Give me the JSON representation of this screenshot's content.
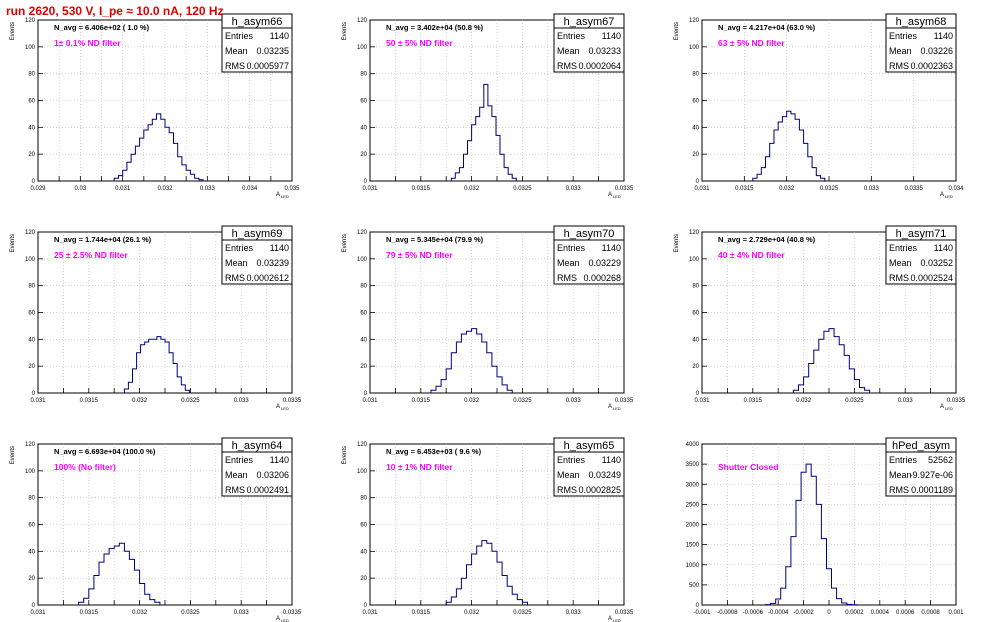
{
  "page": {
    "title": "run 2620,   530 V, I_pe ≈ 10.0 nA, 120 Hz"
  },
  "colors": {
    "histogram_line": "#000080",
    "annotation": "#ff00ff",
    "title": "#e00000",
    "grid": "#b8b8b8"
  },
  "chart_data": [
    {
      "type": "histogram",
      "name": "h_asym66",
      "stats": {
        "entries_label": "Entries",
        "entries": "1140",
        "mean_label": "Mean",
        "mean": "0.03235",
        "rms_label": "RMS",
        "rms": "0.0005977"
      },
      "navg": "N_avg = 6.406e+02 ( 1.0 %)",
      "filter": "1± 0.1% ND filter",
      "ylabel": "Events",
      "xlabel": "A",
      "xlabel_sub": "LED",
      "xlim": [
        0.029,
        0.035
      ],
      "ylim": [
        0,
        120
      ],
      "xticks": [
        0.029,
        0.0295,
        0.03,
        0.0305,
        0.031,
        0.0315,
        0.032,
        0.0325,
        0.033,
        0.0335,
        0.034,
        0.0345,
        0.035
      ],
      "xtick_labels": [
        "0.029",
        "",
        "0.03",
        "",
        "0.031",
        "",
        "0.032",
        "",
        "0.033",
        "",
        "0.034",
        "",
        "0.035"
      ],
      "yticks": [
        0,
        20,
        40,
        60,
        80,
        100,
        120
      ],
      "ytick_labels": [
        "0",
        "20",
        "40",
        "60",
        "80",
        "100",
        "120"
      ],
      "bin_start": 0.0308,
      "bin_width": 0.0001,
      "counts": [
        2,
        4,
        8,
        14,
        20,
        26,
        32,
        38,
        42,
        46,
        50,
        46,
        40,
        36,
        28,
        18,
        12,
        8,
        5,
        2,
        1
      ]
    },
    {
      "type": "histogram",
      "name": "h_asym67",
      "stats": {
        "entries_label": "Entries",
        "entries": "1140",
        "mean_label": "Mean",
        "mean": "0.03233",
        "rms_label": "RMS",
        "rms": "0.0002064"
      },
      "navg": "N_avg = 3.402e+04 (50.8 %)",
      "filter": "50 ± 5% ND filter",
      "ylabel": "Events",
      "xlabel": "A",
      "xlabel_sub": "LED",
      "xlim": [
        0.031,
        0.0335
      ],
      "ylim": [
        0,
        120
      ],
      "xticks": [
        0.031,
        0.03125,
        0.0315,
        0.03175,
        0.032,
        0.03225,
        0.0325,
        0.03275,
        0.033,
        0.03325,
        0.0335
      ],
      "xtick_labels": [
        "0.031",
        "",
        "0.0315",
        "",
        "0.032",
        "",
        "0.0325",
        "",
        "0.033",
        "",
        "0.0335"
      ],
      "yticks": [
        0,
        20,
        40,
        60,
        80,
        100,
        120
      ],
      "ytick_labels": [
        "0",
        "20",
        "40",
        "60",
        "80",
        "100",
        "120"
      ],
      "bin_start": 0.0318,
      "bin_width": 4e-05,
      "counts": [
        2,
        6,
        10,
        20,
        30,
        42,
        48,
        55,
        72,
        56,
        48,
        34,
        20,
        10,
        5,
        2
      ]
    },
    {
      "type": "histogram",
      "name": "h_asym68",
      "stats": {
        "entries_label": "Entries",
        "entries": "1140",
        "mean_label": "Mean",
        "mean": "0.03226",
        "rms_label": "RMS",
        "rms": "0.0002363"
      },
      "navg": "N_avg = 4.217e+04 (63.0 %)",
      "filter": "63 ± 5% ND filter",
      "ylabel": "Events",
      "xlabel": "A",
      "xlabel_sub": "LED",
      "xlim": [
        0.031,
        0.034
      ],
      "ylim": [
        0,
        120
      ],
      "xticks": [
        0.031,
        0.0315,
        0.032,
        0.0325,
        0.033,
        0.0335,
        0.034
      ],
      "xtick_labels": [
        "0.031",
        "0.0315",
        "0.032",
        "0.0325",
        "0.033",
        "0.0335",
        "0.034"
      ],
      "yticks": [
        0,
        20,
        40,
        60,
        80,
        100,
        120
      ],
      "ytick_labels": [
        "0",
        "20",
        "40",
        "60",
        "80",
        "100",
        "120"
      ],
      "bin_start": 0.0316,
      "bin_width": 5e-05,
      "counts": [
        2,
        5,
        10,
        18,
        28,
        38,
        44,
        48,
        52,
        50,
        46,
        38,
        28,
        18,
        10,
        4,
        2
      ]
    },
    {
      "type": "histogram",
      "name": "h_asym69",
      "stats": {
        "entries_label": "Entries",
        "entries": "1140",
        "mean_label": "Mean",
        "mean": "0.03239",
        "rms_label": "RMS",
        "rms": "0.0002612"
      },
      "navg": "N_avg = 1.744e+04 (26.1 %)",
      "filter": "25 ± 2.5% ND filter",
      "ylabel": "Events",
      "xlabel": "A",
      "xlabel_sub": "LED",
      "xlim": [
        0.031,
        0.0335
      ],
      "ylim": [
        0,
        120
      ],
      "xticks": [
        0.031,
        0.03125,
        0.0315,
        0.03175,
        0.032,
        0.03225,
        0.0325,
        0.03275,
        0.033,
        0.03325,
        0.0335
      ],
      "xtick_labels": [
        "0.031",
        "",
        "0.0315",
        "",
        "0.032",
        "",
        "0.0325",
        "",
        "0.033",
        "",
        "0.0335"
      ],
      "yticks": [
        0,
        20,
        40,
        60,
        80,
        100,
        120
      ],
      "ytick_labels": [
        "0",
        "20",
        "40",
        "60",
        "80",
        "100",
        "120"
      ],
      "bin_start": 0.03185,
      "bin_width": 4e-05,
      "counts": [
        3,
        8,
        18,
        30,
        36,
        38,
        40,
        40,
        42,
        40,
        38,
        30,
        22,
        12,
        6,
        2
      ]
    },
    {
      "type": "histogram",
      "name": "h_asym70",
      "stats": {
        "entries_label": "Entries",
        "entries": "1140",
        "mean_label": "Mean",
        "mean": "0.03229",
        "rms_label": "RMS",
        "rms": "0.000268"
      },
      "navg": "N_avg = 5.345e+04 (79.9 %)",
      "filter": "79 ± 5% ND filter",
      "ylabel": "Events",
      "xlabel": "A",
      "xlabel_sub": "LED",
      "xlim": [
        0.031,
        0.0335
      ],
      "ylim": [
        0,
        120
      ],
      "xticks": [
        0.031,
        0.03125,
        0.0315,
        0.03175,
        0.032,
        0.03225,
        0.0325,
        0.03275,
        0.033,
        0.03325,
        0.0335
      ],
      "xtick_labels": [
        "0.031",
        "",
        "0.0315",
        "",
        "0.032",
        "",
        "0.0325",
        "",
        "0.033",
        "",
        "0.0335"
      ],
      "yticks": [
        0,
        20,
        40,
        60,
        80,
        100,
        120
      ],
      "ytick_labels": [
        "0",
        "20",
        "40",
        "60",
        "80",
        "100",
        "120"
      ],
      "bin_start": 0.0316,
      "bin_width": 5e-05,
      "counts": [
        2,
        5,
        10,
        18,
        30,
        38,
        44,
        46,
        48,
        44,
        38,
        30,
        20,
        12,
        6,
        2
      ]
    },
    {
      "type": "histogram",
      "name": "h_asym71",
      "stats": {
        "entries_label": "Entries",
        "entries": "1140",
        "mean_label": "Mean",
        "mean": "0.03252",
        "rms_label": "RMS",
        "rms": "0.0002524"
      },
      "navg": "N_avg = 2.729e+04 (40.8 %)",
      "filter": "40 ± 4% ND filter",
      "ylabel": "Events",
      "xlabel": "A",
      "xlabel_sub": "LED",
      "xlim": [
        0.031,
        0.0335
      ],
      "ylim": [
        0,
        120
      ],
      "xticks": [
        0.031,
        0.03125,
        0.0315,
        0.03175,
        0.032,
        0.03225,
        0.0325,
        0.03275,
        0.033,
        0.03325,
        0.0335
      ],
      "xtick_labels": [
        "0.031",
        "",
        "0.0315",
        "",
        "0.032",
        "",
        "0.0325",
        "",
        "0.033",
        "",
        "0.0335"
      ],
      "yticks": [
        0,
        20,
        40,
        60,
        80,
        100,
        120
      ],
      "ytick_labels": [
        "0",
        "20",
        "40",
        "60",
        "80",
        "100",
        "120"
      ],
      "bin_start": 0.0319,
      "bin_width": 5e-05,
      "counts": [
        2,
        6,
        12,
        22,
        32,
        40,
        46,
        48,
        42,
        36,
        28,
        18,
        10,
        4,
        2
      ]
    },
    {
      "type": "histogram",
      "name": "h_asym64",
      "stats": {
        "entries_label": "Entries",
        "entries": "1140",
        "mean_label": "Mean",
        "mean": "0.03206",
        "rms_label": "RMS",
        "rms": "0.0002491"
      },
      "navg": "N_avg = 6.693e+04 (100.0 %)",
      "filter": "100% (No filter)",
      "ylabel": "Events",
      "xlabel": "A",
      "xlabel_sub": "LED",
      "xlim": [
        0.031,
        0.0335
      ],
      "ylim": [
        0,
        120
      ],
      "xticks": [
        0.031,
        0.03125,
        0.0315,
        0.03175,
        0.032,
        0.03225,
        0.0325,
        0.03275,
        0.033,
        0.03325,
        0.0335
      ],
      "xtick_labels": [
        "0.031",
        "",
        "0.0315",
        "",
        "0.032",
        "",
        "0.0325",
        "",
        "0.033",
        "",
        "0.0335"
      ],
      "yticks": [
        0,
        20,
        40,
        60,
        80,
        100,
        120
      ],
      "ytick_labels": [
        "0",
        "20",
        "40",
        "60",
        "80",
        "100",
        "120"
      ],
      "bin_start": 0.0314,
      "bin_width": 5e-05,
      "counts": [
        2,
        5,
        12,
        22,
        32,
        38,
        42,
        44,
        46,
        40,
        34,
        26,
        16,
        8,
        4,
        2
      ]
    },
    {
      "type": "histogram",
      "name": "h_asym65",
      "stats": {
        "entries_label": "Entries",
        "entries": "1140",
        "mean_label": "Mean",
        "mean": "0.03249",
        "rms_label": "RMS",
        "rms": "0.0002825"
      },
      "navg": "N_avg = 6.453e+03 ( 9.6 %)",
      "filter": "10 ± 1% ND filter",
      "ylabel": "Events",
      "xlabel": "A",
      "xlabel_sub": "LED",
      "xlim": [
        0.031,
        0.0335
      ],
      "ylim": [
        0,
        120
      ],
      "xticks": [
        0.031,
        0.03125,
        0.0315,
        0.03175,
        0.032,
        0.03225,
        0.0325,
        0.03275,
        0.033,
        0.03325,
        0.0335
      ],
      "xtick_labels": [
        "0.031",
        "",
        "0.0315",
        "",
        "0.032",
        "",
        "0.0325",
        "",
        "0.033",
        "",
        "0.0335"
      ],
      "yticks": [
        0,
        20,
        40,
        60,
        80,
        100,
        120
      ],
      "ytick_labels": [
        "0",
        "20",
        "40",
        "60",
        "80",
        "100",
        "120"
      ],
      "bin_start": 0.03175,
      "bin_width": 5e-05,
      "counts": [
        2,
        6,
        12,
        20,
        30,
        38,
        44,
        48,
        46,
        40,
        32,
        22,
        14,
        8,
        4,
        2
      ]
    },
    {
      "type": "histogram",
      "name": "hPed_asym",
      "stats": {
        "entries_label": "Entries",
        "entries": "52562",
        "mean_label": "Mean",
        "mean": "-9.927e-06",
        "rms_label": "RMS",
        "rms": "0.0001189"
      },
      "navg": "",
      "filter": "Shutter Closed",
      "ylabel": "",
      "xlabel": "",
      "xlabel_sub": "",
      "xlim": [
        -0.001,
        0.001
      ],
      "ylim": [
        0,
        4000
      ],
      "xticks": [
        -0.001,
        -0.0008,
        -0.0006,
        -0.0004,
        -0.0002,
        0,
        0.0002,
        0.0004,
        0.0006,
        0.0008,
        0.001
      ],
      "xtick_labels": [
        "-0.001",
        "-0.0008",
        "-0.0006",
        "-0.0004",
        "-0.0002",
        "0",
        "0.0002",
        "0.0004",
        "0.0006",
        "0.0008",
        "0.001"
      ],
      "yticks": [
        0,
        500,
        1000,
        1500,
        2000,
        2500,
        3000,
        3500,
        4000
      ],
      "ytick_labels": [
        "0",
        "500",
        "1000",
        "1500",
        "2000",
        "2500",
        "3000",
        "3500",
        "4000"
      ],
      "bin_start": -0.0005,
      "bin_width": 4e-05,
      "counts": [
        10,
        40,
        150,
        420,
        950,
        1700,
        2600,
        3300,
        3500,
        3200,
        2500,
        1650,
        900,
        420,
        160,
        50,
        15,
        5
      ]
    }
  ]
}
